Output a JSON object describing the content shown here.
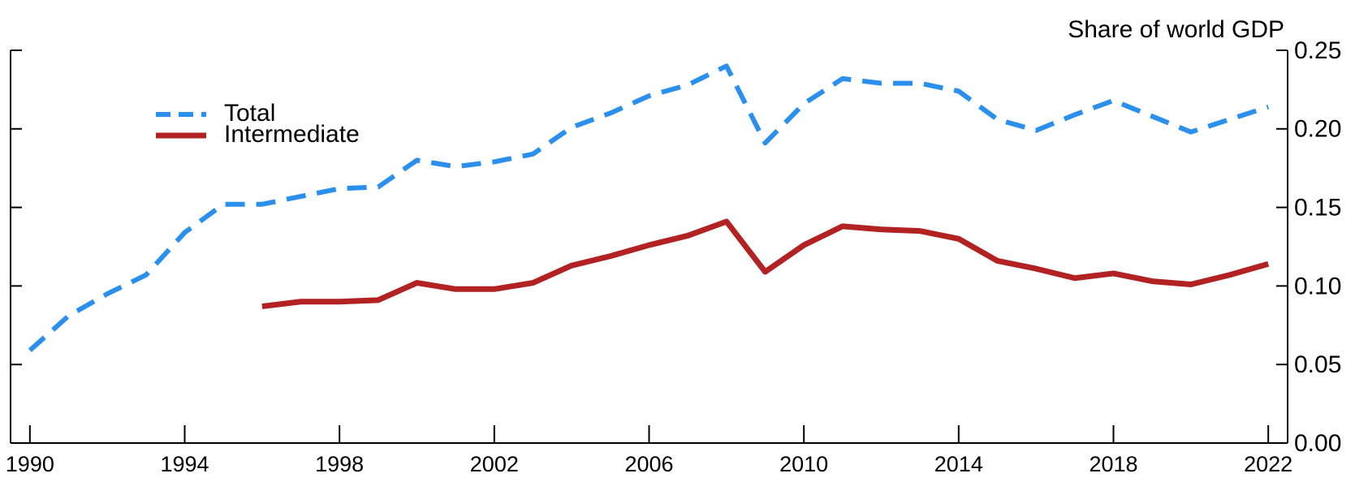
{
  "chart_data": {
    "type": "line",
    "y_axis_label": "Share of world GDP",
    "x": [
      1990,
      1991,
      1992,
      1993,
      1994,
      1995,
      1996,
      1997,
      1998,
      1999,
      2000,
      2001,
      2002,
      2003,
      2004,
      2005,
      2006,
      2007,
      2008,
      2009,
      2010,
      2011,
      2012,
      2013,
      2014,
      2015,
      2016,
      2017,
      2018,
      2019,
      2020,
      2021,
      2022
    ],
    "series": [
      {
        "name": "Total",
        "color": "#2b8fee",
        "dash": true,
        "values": [
          0.059,
          0.081,
          0.095,
          0.107,
          0.134,
          0.152,
          0.152,
          0.157,
          0.162,
          0.163,
          0.18,
          0.176,
          0.179,
          0.184,
          0.201,
          0.21,
          0.221,
          0.228,
          0.24,
          0.191,
          0.216,
          0.232,
          0.229,
          0.229,
          0.224,
          0.206,
          0.199,
          0.209,
          0.218,
          0.208,
          0.198,
          0.206,
          0.214
        ]
      },
      {
        "name": "Intermediate",
        "color": "#b22222",
        "dash": false,
        "values": [
          null,
          null,
          null,
          null,
          null,
          null,
          0.087,
          0.09,
          0.09,
          0.091,
          0.102,
          0.098,
          0.098,
          0.102,
          0.113,
          0.119,
          0.126,
          0.132,
          0.141,
          0.109,
          0.126,
          0.138,
          0.136,
          0.135,
          0.13,
          0.116,
          0.111,
          0.105,
          0.108,
          0.103,
          0.101,
          0.107,
          0.114
        ]
      }
    ],
    "xlim": [
      1989.5,
      2022.5
    ],
    "xticks": [
      1990,
      1994,
      1998,
      2002,
      2006,
      2010,
      2014,
      2018,
      2022
    ],
    "ylim": [
      0,
      0.25
    ],
    "yticks": [
      {
        "value": 0,
        "label": "0.00"
      },
      {
        "value": 0.05,
        "label": "0.05"
      },
      {
        "value": 0.1,
        "label": "0.10"
      },
      {
        "value": 0.15,
        "label": "0.15"
      },
      {
        "value": 0.2,
        "label": "0.20"
      },
      {
        "value": 0.25,
        "label": "0.25"
      }
    ],
    "y_axis_side": "right",
    "legend": "upper left"
  }
}
